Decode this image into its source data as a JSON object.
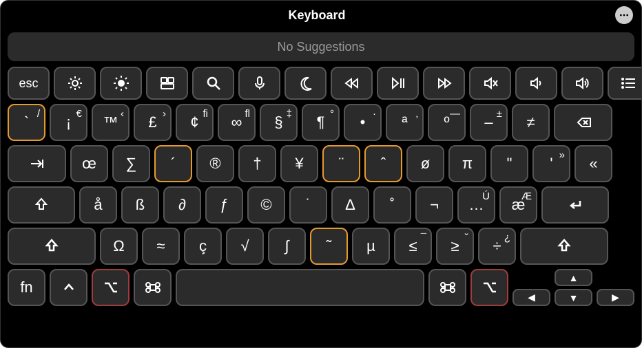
{
  "window": {
    "title": "Keyboard"
  },
  "suggestions": {
    "text": "No Suggestions"
  },
  "colors": {
    "bg": "#000",
    "key": "#2b2b2b",
    "border": "#555",
    "highlight": "#e69a2e",
    "highlight_red": "#a03c3c",
    "text": "#fff",
    "muted": "#9a9a9a"
  },
  "fnRow": [
    {
      "id": "esc",
      "label": "esc",
      "icon": null
    },
    {
      "id": "dim",
      "icon": "brightness-low"
    },
    {
      "id": "bright",
      "icon": "brightness-high"
    },
    {
      "id": "mission",
      "icon": "mission-control"
    },
    {
      "id": "spotlight",
      "icon": "search"
    },
    {
      "id": "mic",
      "icon": "mic"
    },
    {
      "id": "dnd",
      "icon": "moon"
    },
    {
      "id": "rw",
      "icon": "rewind"
    },
    {
      "id": "pp",
      "icon": "playpause"
    },
    {
      "id": "ff",
      "icon": "forward"
    },
    {
      "id": "mute",
      "icon": "mute"
    },
    {
      "id": "voldown",
      "icon": "vol-down"
    },
    {
      "id": "volup",
      "icon": "vol-up"
    },
    {
      "id": "list",
      "icon": "list"
    }
  ],
  "row1": [
    {
      "main": "`",
      "tr": "/",
      "highlight": true
    },
    {
      "main": "¡",
      "tr": "€",
      "tl": ""
    },
    {
      "main": "™",
      "tr": "‹"
    },
    {
      "main": "£",
      "tr": "›"
    },
    {
      "main": "¢",
      "tr": "fi"
    },
    {
      "main": "∞",
      "tr": "fl"
    },
    {
      "main": "§",
      "tr": "‡"
    },
    {
      "main": "¶",
      "tr": "°"
    },
    {
      "main": "•",
      "tr": "·"
    },
    {
      "main": "ª",
      "tr": "‚"
    },
    {
      "main": "º",
      "tr": "—"
    },
    {
      "main": "–",
      "tr": "±"
    },
    {
      "main": "≠",
      "tr": ""
    },
    {
      "icon": "backspace",
      "wide": "w15"
    }
  ],
  "row2": [
    {
      "icon": "tab",
      "wide": "w15"
    },
    {
      "main": "œ"
    },
    {
      "main": "∑"
    },
    {
      "main": "´",
      "highlight": true
    },
    {
      "main": "®"
    },
    {
      "main": "†"
    },
    {
      "main": "¥"
    },
    {
      "main": "¨",
      "highlight": true
    },
    {
      "main": "ˆ",
      "highlight": true
    },
    {
      "main": "ø"
    },
    {
      "main": "π"
    },
    {
      "main": "\""
    },
    {
      "main": "'",
      "tr": "»"
    },
    {
      "main": "«"
    }
  ],
  "row3": [
    {
      "icon": "shift-hollow",
      "wide": "w175"
    },
    {
      "main": "å"
    },
    {
      "main": "ß"
    },
    {
      "main": "∂"
    },
    {
      "main": "ƒ"
    },
    {
      "main": "©"
    },
    {
      "main": "˙"
    },
    {
      "main": "∆"
    },
    {
      "main": "˚"
    },
    {
      "main": "¬"
    },
    {
      "main": "…",
      "tr": "Ú"
    },
    {
      "main": "æ",
      "tr": "Æ"
    },
    {
      "icon": "return",
      "wide": "w175"
    }
  ],
  "row4": [
    {
      "icon": "shift",
      "wide": "w225"
    },
    {
      "main": "Ω"
    },
    {
      "main": "≈"
    },
    {
      "main": "ç"
    },
    {
      "main": "√"
    },
    {
      "main": "∫"
    },
    {
      "main": "˜",
      "highlight": true
    },
    {
      "main": "µ"
    },
    {
      "main": "≤",
      "tr": "¯"
    },
    {
      "main": "≥",
      "tr": "˘"
    },
    {
      "main": "÷",
      "tr": "¿"
    },
    {
      "icon": "shift",
      "wide": "w225"
    }
  ],
  "row5": {
    "left": [
      {
        "label": "fn"
      },
      {
        "icon": "ctrl"
      },
      {
        "icon": "option",
        "red": true
      },
      {
        "icon": "cmd"
      }
    ],
    "right": [
      {
        "icon": "cmd"
      },
      {
        "icon": "option",
        "red": true
      }
    ]
  },
  "arrows": {
    "up": "▲",
    "left": "◀",
    "down": "▼",
    "right": "▶"
  }
}
